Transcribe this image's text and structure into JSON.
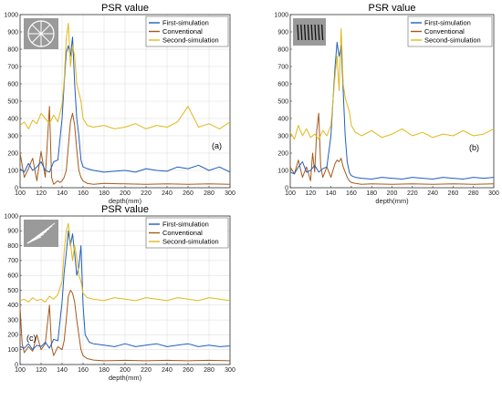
{
  "colors": {
    "first": "#1f5fbf",
    "conventional": "#a45a1c",
    "second": "#e0b81c",
    "axis": "#333333",
    "grid": "#d9d9d9"
  },
  "chart_data": [
    {
      "type": "line",
      "title": "PSR value",
      "xlabel": "depth(mm)",
      "ylabel": "",
      "panel_label": "(a)",
      "inset_icon": "circular-sector-target-icon",
      "xlim": [
        100,
        300
      ],
      "ylim": [
        0,
        1000
      ],
      "xticks": [
        100,
        120,
        140,
        160,
        180,
        200,
        220,
        240,
        260,
        280,
        300
      ],
      "yticks": [
        0,
        100,
        200,
        300,
        400,
        500,
        600,
        700,
        800,
        900,
        1000
      ],
      "grid": true,
      "legend": "top-right",
      "series": [
        {
          "name": "First-simulation",
          "color": "#1f5fbf",
          "x": [
            100,
            104,
            108,
            112,
            116,
            120,
            124,
            128,
            132,
            136,
            140,
            142,
            144,
            146,
            148,
            150,
            152,
            154,
            156,
            158,
            160,
            164,
            170,
            180,
            190,
            200,
            210,
            220,
            230,
            240,
            250,
            260,
            270,
            280,
            290,
            300
          ],
          "values": [
            110,
            90,
            140,
            100,
            120,
            150,
            100,
            90,
            150,
            160,
            400,
            600,
            780,
            820,
            760,
            870,
            600,
            400,
            300,
            160,
            120,
            110,
            100,
            90,
            95,
            100,
            90,
            110,
            100,
            95,
            120,
            110,
            130,
            100,
            120,
            90
          ]
        },
        {
          "name": "Conventional",
          "color": "#a45a1c",
          "x": [
            100,
            104,
            108,
            112,
            116,
            120,
            124,
            128,
            130,
            132,
            134,
            136,
            138,
            140,
            142,
            144,
            146,
            148,
            150,
            152,
            154,
            156,
            158,
            160,
            164,
            170,
            180,
            200,
            220,
            240,
            260,
            280,
            300
          ],
          "values": [
            200,
            60,
            110,
            170,
            40,
            210,
            60,
            470,
            60,
            20,
            30,
            40,
            30,
            40,
            60,
            100,
            240,
            380,
            430,
            360,
            220,
            100,
            60,
            40,
            25,
            20,
            25,
            22,
            20,
            22,
            20,
            22,
            20
          ]
        },
        {
          "name": "Second-simulation",
          "color": "#e0b81c",
          "x": [
            100,
            104,
            108,
            112,
            116,
            120,
            124,
            128,
            132,
            136,
            140,
            142,
            144,
            146,
            148,
            150,
            152,
            154,
            156,
            158,
            160,
            164,
            170,
            180,
            190,
            200,
            210,
            220,
            230,
            240,
            250,
            260,
            270,
            280,
            290,
            300
          ],
          "values": [
            360,
            380,
            340,
            390,
            370,
            430,
            400,
            370,
            420,
            380,
            480,
            620,
            860,
            950,
            700,
            820,
            760,
            600,
            550,
            500,
            400,
            360,
            350,
            360,
            340,
            350,
            370,
            340,
            360,
            350,
            380,
            470,
            350,
            370,
            340,
            380
          ]
        }
      ]
    },
    {
      "type": "line",
      "title": "PSR value",
      "xlabel": "depth(mm)",
      "ylabel": "",
      "panel_label": "(b)",
      "inset_icon": "line-grating-target-icon",
      "xlim": [
        100,
        300
      ],
      "ylim": [
        0,
        1000
      ],
      "xticks": [
        100,
        120,
        140,
        160,
        180,
        200,
        220,
        240,
        260,
        280,
        300
      ],
      "yticks": [
        0,
        100,
        200,
        300,
        400,
        500,
        600,
        700,
        800,
        900,
        1000
      ],
      "grid": false,
      "legend": "top-right",
      "series": [
        {
          "name": "First-simulation",
          "color": "#1f5fbf",
          "x": [
            100,
            104,
            108,
            112,
            116,
            120,
            124,
            128,
            132,
            136,
            140,
            142,
            144,
            146,
            148,
            150,
            152,
            154,
            156,
            158,
            160,
            164,
            170,
            180,
            190,
            200,
            210,
            220,
            230,
            240,
            250,
            260,
            270,
            280,
            290,
            300
          ],
          "values": [
            90,
            80,
            120,
            150,
            90,
            100,
            130,
            90,
            110,
            120,
            300,
            500,
            700,
            840,
            760,
            820,
            560,
            300,
            150,
            90,
            70,
            60,
            55,
            50,
            60,
            55,
            50,
            60,
            55,
            50,
            60,
            55,
            50,
            60,
            55,
            60
          ]
        },
        {
          "name": "Conventional",
          "color": "#a45a1c",
          "x": [
            100,
            104,
            108,
            112,
            116,
            120,
            122,
            124,
            126,
            128,
            130,
            132,
            136,
            140,
            142,
            144,
            146,
            148,
            150,
            152,
            154,
            156,
            158,
            160,
            164,
            170,
            180,
            200,
            220,
            240,
            260,
            280,
            300
          ],
          "values": [
            120,
            80,
            160,
            60,
            120,
            40,
            200,
            90,
            330,
            430,
            120,
            60,
            120,
            60,
            100,
            140,
            160,
            150,
            170,
            120,
            90,
            60,
            40,
            30,
            25,
            20,
            22,
            20,
            22,
            20,
            22,
            20,
            22
          ]
        },
        {
          "name": "Second-simulation",
          "color": "#e0b81c",
          "x": [
            100,
            104,
            108,
            112,
            116,
            120,
            124,
            128,
            132,
            136,
            140,
            142,
            144,
            146,
            148,
            150,
            152,
            154,
            156,
            158,
            160,
            164,
            170,
            180,
            190,
            200,
            210,
            220,
            230,
            240,
            250,
            260,
            270,
            280,
            290,
            300
          ],
          "values": [
            320,
            280,
            360,
            300,
            340,
            290,
            310,
            280,
            330,
            300,
            360,
            500,
            650,
            760,
            560,
            920,
            600,
            520,
            480,
            440,
            360,
            320,
            300,
            330,
            290,
            310,
            340,
            300,
            320,
            290,
            310,
            300,
            330,
            300,
            310,
            340
          ]
        }
      ]
    },
    {
      "type": "line",
      "title": "PSR value",
      "xlabel": "depth(mm)",
      "ylabel": "",
      "panel_label": "(c)",
      "inset_icon": "radial-line-target-icon",
      "xlim": [
        100,
        300
      ],
      "ylim": [
        0,
        1000
      ],
      "xticks": [
        100,
        120,
        140,
        160,
        180,
        200,
        220,
        240,
        260,
        280,
        300
      ],
      "yticks": [
        0,
        100,
        200,
        300,
        400,
        500,
        600,
        700,
        800,
        900,
        1000
      ],
      "grid": true,
      "legend": "top-right",
      "series": [
        {
          "name": "First-simulation",
          "color": "#1f5fbf",
          "x": [
            100,
            104,
            108,
            112,
            116,
            120,
            124,
            128,
            132,
            136,
            140,
            142,
            144,
            146,
            148,
            150,
            152,
            154,
            156,
            158,
            160,
            162,
            166,
            170,
            180,
            190,
            200,
            210,
            220,
            230,
            240,
            250,
            260,
            270,
            280,
            290,
            300
          ],
          "values": [
            120,
            110,
            140,
            100,
            130,
            120,
            150,
            110,
            170,
            160,
            420,
            620,
            750,
            900,
            800,
            880,
            750,
            600,
            660,
            800,
            400,
            200,
            150,
            140,
            130,
            120,
            140,
            120,
            130,
            140,
            120,
            130,
            140,
            120,
            130,
            120,
            125
          ]
        },
        {
          "name": "Conventional",
          "color": "#a45a1c",
          "x": [
            100,
            102,
            104,
            108,
            112,
            116,
            120,
            124,
            128,
            130,
            132,
            136,
            140,
            142,
            144,
            146,
            148,
            150,
            152,
            154,
            156,
            158,
            160,
            164,
            170,
            180,
            200,
            220,
            240,
            260,
            280,
            300
          ],
          "values": [
            380,
            140,
            80,
            120,
            90,
            200,
            100,
            140,
            400,
            120,
            60,
            120,
            100,
            160,
            300,
            460,
            500,
            480,
            420,
            300,
            200,
            100,
            60,
            40,
            30,
            25,
            28,
            25,
            28,
            25,
            28,
            25
          ]
        },
        {
          "name": "Second-simulation",
          "color": "#e0b81c",
          "x": [
            100,
            104,
            108,
            112,
            116,
            120,
            124,
            128,
            132,
            136,
            140,
            142,
            144,
            146,
            148,
            150,
            152,
            154,
            156,
            158,
            160,
            164,
            170,
            180,
            190,
            200,
            210,
            220,
            230,
            240,
            250,
            260,
            270,
            280,
            290,
            300
          ],
          "values": [
            430,
            440,
            420,
            450,
            430,
            440,
            420,
            460,
            440,
            470,
            560,
            760,
            900,
            950,
            820,
            700,
            800,
            720,
            600,
            560,
            480,
            450,
            440,
            430,
            450,
            440,
            430,
            450,
            440,
            430,
            450,
            440,
            430,
            450,
            440,
            430
          ]
        }
      ]
    }
  ]
}
